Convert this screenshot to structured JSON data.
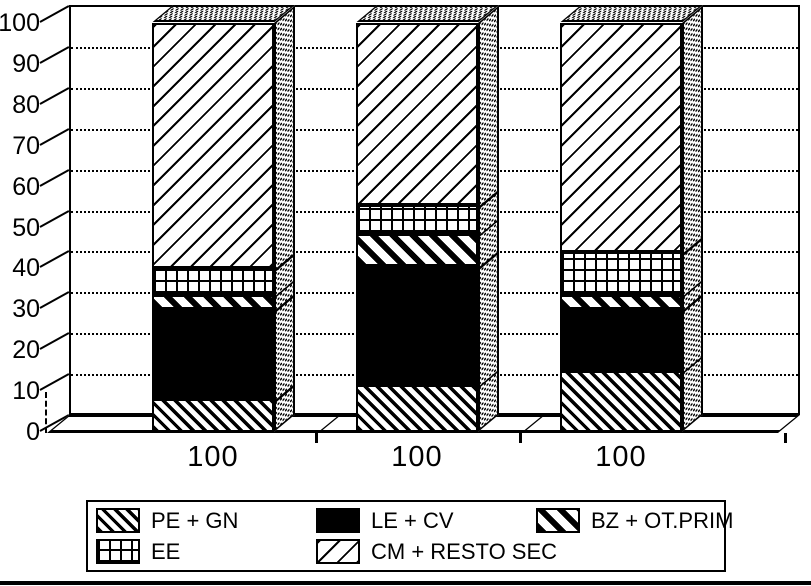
{
  "chart_data": {
    "type": "bar",
    "stacked": true,
    "projection": "3d",
    "title": "",
    "xlabel": "",
    "ylabel": "",
    "categories": [
      "100",
      "100",
      "100"
    ],
    "series": [
      {
        "name": "PE + GN",
        "pattern": "diagonal-backslash-dense",
        "values": [
          8,
          11.5,
          15
        ]
      },
      {
        "name": "LE + CV",
        "pattern": "solid-black",
        "values": [
          22,
          29,
          15
        ]
      },
      {
        "name": "BZ + OT.PRIM",
        "pattern": "diagonal-backslash-bold",
        "values": [
          3.5,
          8,
          3.5
        ]
      },
      {
        "name": "EE",
        "pattern": "grid",
        "values": [
          6.5,
          7,
          10.5
        ]
      },
      {
        "name": "CM + RESTO SEC",
        "pattern": "diagonal-slash",
        "values": [
          60,
          44.5,
          56
        ]
      }
    ],
    "ylim": [
      0,
      100
    ],
    "yticks": [
      0,
      10,
      20,
      30,
      40,
      50,
      60,
      70,
      80,
      90,
      100
    ],
    "grid": "horizontal-dotted",
    "legend_position": "bottom",
    "colors": {
      "ink": "#000000",
      "paper": "#ffffff"
    }
  }
}
